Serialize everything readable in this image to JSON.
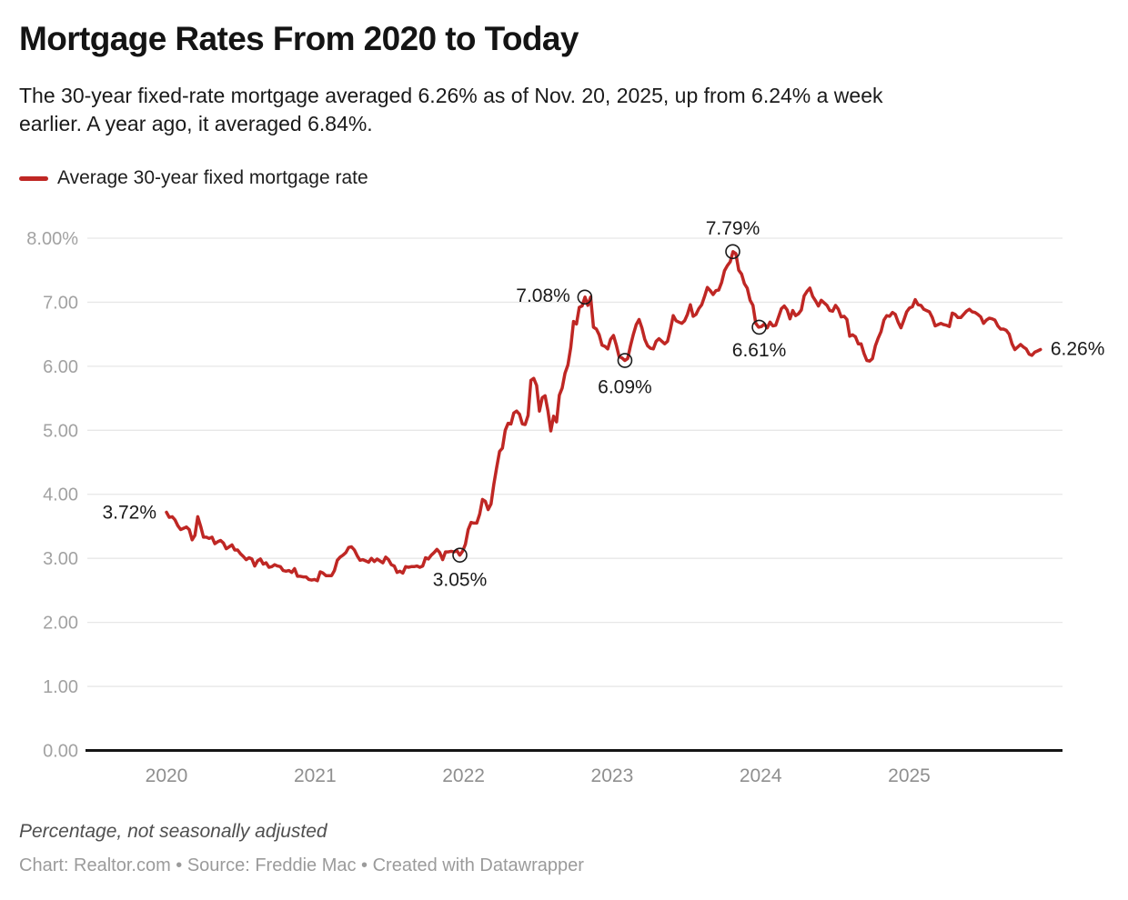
{
  "header": {
    "title": "Mortgage Rates From 2020 to Today",
    "subtitle_line1": "The 30-year fixed-rate mortgage averaged 6.26% as of Nov. 20, 2025, up from 6.24% a week",
    "subtitle_line2": "earlier. A year ago, it averaged 6.84%."
  },
  "legend": {
    "series_label": "Average 30-year fixed mortgage rate",
    "series_color": "#bf2724"
  },
  "footer": {
    "note": "Percentage, not seasonally adjusted",
    "credit": "Chart: Realtor.com • Source: Freddie Mac • Created with Datawrapper"
  },
  "chart_data": {
    "type": "line",
    "title": "Mortgage Rates From 2020 to Today",
    "series_name": "Average 30-year fixed mortgage rate",
    "unit": "percent, weekly, not seasonally adjusted",
    "xlabel": "",
    "ylabel": "",
    "ylim": [
      0,
      8
    ],
    "grid": "horizontal",
    "legend_position": "top-left",
    "x_ticks": [
      "2020",
      "2021",
      "2022",
      "2023",
      "2024",
      "2025"
    ],
    "x_tick_values": [
      2020,
      2021,
      2022,
      2023,
      2024,
      2025
    ],
    "y_ticks": [
      "8.00%",
      "7.00",
      "6.00",
      "5.00",
      "4.00",
      "3.00",
      "2.00",
      "1.00",
      "0.00"
    ],
    "y_tick_values": [
      8,
      7,
      6,
      5,
      4,
      3,
      2,
      1,
      0
    ],
    "x_start_decimal_year": 2020.0,
    "x_step_years": 0.0191649,
    "values": [
      3.72,
      3.64,
      3.65,
      3.6,
      3.51,
      3.45,
      3.47,
      3.49,
      3.45,
      3.29,
      3.36,
      3.65,
      3.5,
      3.33,
      3.33,
      3.31,
      3.33,
      3.23,
      3.26,
      3.28,
      3.24,
      3.15,
      3.18,
      3.21,
      3.13,
      3.13,
      3.07,
      3.03,
      2.98,
      3.01,
      2.99,
      2.88,
      2.96,
      2.99,
      2.91,
      2.93,
      2.86,
      2.87,
      2.9,
      2.88,
      2.87,
      2.81,
      2.8,
      2.81,
      2.78,
      2.84,
      2.72,
      2.72,
      2.71,
      2.71,
      2.67,
      2.66,
      2.67,
      2.65,
      2.79,
      2.77,
      2.73,
      2.73,
      2.73,
      2.81,
      2.97,
      3.02,
      3.05,
      3.09,
      3.17,
      3.18,
      3.13,
      3.04,
      2.97,
      2.98,
      2.96,
      2.94,
      3.0,
      2.95,
      2.99,
      2.96,
      2.93,
      3.02,
      2.98,
      2.9,
      2.88,
      2.78,
      2.8,
      2.77,
      2.87,
      2.86,
      2.87,
      2.87,
      2.88,
      2.86,
      2.88,
      3.01,
      2.99,
      3.05,
      3.09,
      3.14,
      3.09,
      2.98,
      3.1,
      3.1,
      3.11,
      3.1,
      3.12,
      3.05,
      3.11,
      3.22,
      3.45,
      3.56,
      3.55,
      3.55,
      3.69,
      3.92,
      3.89,
      3.76,
      3.85,
      4.16,
      4.42,
      4.67,
      4.72,
      5.0,
      5.11,
      5.1,
      5.27,
      5.3,
      5.25,
      5.1,
      5.09,
      5.23,
      5.78,
      5.81,
      5.7,
      5.3,
      5.51,
      5.54,
      5.3,
      4.99,
      5.22,
      5.13,
      5.55,
      5.66,
      5.89,
      6.02,
      6.29,
      6.7,
      6.66,
      6.92,
      6.94,
      7.08,
      6.95,
      7.08,
      6.61,
      6.58,
      6.49,
      6.33,
      6.31,
      6.27,
      6.42,
      6.48,
      6.33,
      6.15,
      6.13,
      6.09,
      6.12,
      6.32,
      6.5,
      6.65,
      6.73,
      6.6,
      6.42,
      6.32,
      6.28,
      6.27,
      6.39,
      6.43,
      6.39,
      6.35,
      6.39,
      6.57,
      6.79,
      6.71,
      6.69,
      6.67,
      6.71,
      6.81,
      6.96,
      6.78,
      6.81,
      6.9,
      6.96,
      7.09,
      7.23,
      7.18,
      7.12,
      7.18,
      7.19,
      7.31,
      7.49,
      7.57,
      7.63,
      7.79,
      7.76,
      7.5,
      7.44,
      7.29,
      7.22,
      7.03,
      6.95,
      6.67,
      6.61,
      6.62,
      6.66,
      6.6,
      6.69,
      6.63,
      6.64,
      6.77,
      6.9,
      6.94,
      6.88,
      6.74,
      6.87,
      6.79,
      6.82,
      6.88,
      7.1,
      7.17,
      7.22,
      7.09,
      7.02,
      6.94,
      7.03,
      6.99,
      6.95,
      6.87,
      6.86,
      6.95,
      6.89,
      6.77,
      6.78,
      6.73,
      6.47,
      6.49,
      6.46,
      6.35,
      6.35,
      6.2,
      6.09,
      6.08,
      6.12,
      6.32,
      6.44,
      6.54,
      6.72,
      6.79,
      6.78,
      6.84,
      6.81,
      6.69,
      6.6,
      6.72,
      6.85,
      6.91,
      6.93,
      7.04,
      6.96,
      6.95,
      6.89,
      6.87,
      6.85,
      6.76,
      6.63,
      6.65,
      6.67,
      6.65,
      6.64,
      6.62,
      6.83,
      6.81,
      6.76,
      6.76,
      6.81,
      6.86,
      6.89,
      6.85,
      6.84,
      6.81,
      6.77,
      6.67,
      6.72,
      6.75,
      6.74,
      6.72,
      6.63,
      6.58,
      6.58,
      6.56,
      6.5,
      6.35,
      6.26,
      6.3,
      6.34,
      6.3,
      6.27,
      6.19,
      6.17,
      6.22,
      6.24,
      6.26
    ],
    "callouts": [
      {
        "label": "3.72%",
        "value": 3.72,
        "x": 2020.0,
        "circle": false
      },
      {
        "label": "3.05%",
        "value": 3.05,
        "x": 2021.975,
        "circle": true
      },
      {
        "label": "7.08%",
        "value": 7.08,
        "x": 2022.816,
        "circle": true
      },
      {
        "label": "6.09%",
        "value": 6.09,
        "x": 2023.086,
        "circle": true
      },
      {
        "label": "7.79%",
        "value": 7.79,
        "x": 2023.812,
        "circle": true
      },
      {
        "label": "6.61%",
        "value": 6.61,
        "x": 2023.99,
        "circle": true
      },
      {
        "label": "6.26%",
        "value": 6.26,
        "x": 2025.884,
        "circle": false
      }
    ]
  }
}
